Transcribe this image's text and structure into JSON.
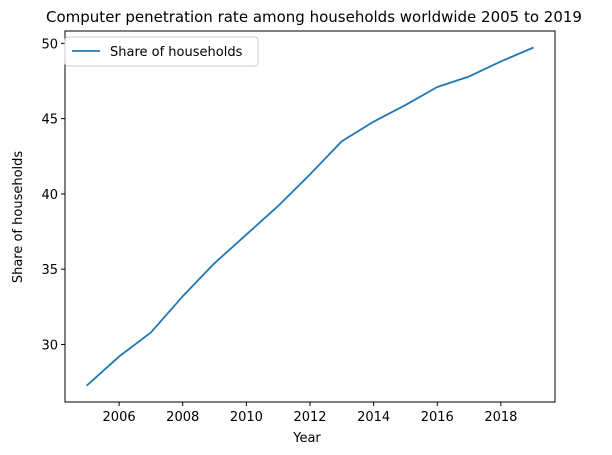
{
  "chart_data": {
    "type": "line",
    "title": "Computer penetration rate among households worldwide 2005 to 2019",
    "xlabel": "Year",
    "ylabel": "Share of households",
    "x": [
      2005,
      2006,
      2007,
      2008,
      2009,
      2010,
      2011,
      2012,
      2013,
      2014,
      2015,
      2016,
      2017,
      2018,
      2019
    ],
    "series": [
      {
        "name": "Share of households",
        "color": "#1f77b4",
        "values": [
          27.3,
          29.2,
          30.8,
          33.2,
          35.4,
          37.3,
          39.2,
          41.3,
          43.5,
          44.8,
          45.9,
          47.1,
          47.8,
          48.8,
          49.7
        ]
      }
    ],
    "xticks": [
      2006,
      2008,
      2010,
      2012,
      2014,
      2016,
      2018
    ],
    "yticks": [
      30,
      35,
      40,
      45,
      50
    ],
    "xlim": [
      2004.3,
      2019.7
    ],
    "ylim": [
      26.18,
      50.82
    ],
    "grid": false,
    "legend_position": "upper-left"
  }
}
